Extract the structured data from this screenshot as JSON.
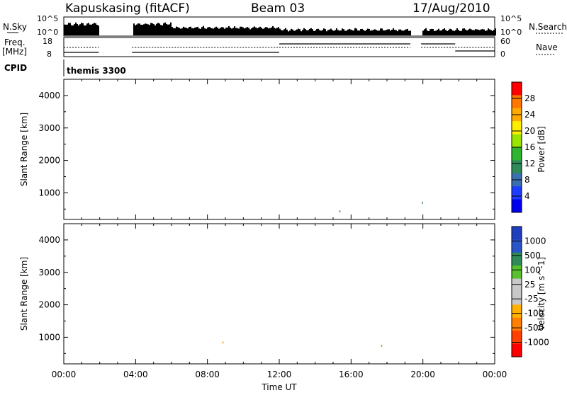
{
  "header": {
    "station": "Kapuskasing (fitACF)",
    "beam": "Beam 03",
    "date": "17/Aug/2010"
  },
  "top_panels": {
    "left_label_1": "N.Sky",
    "left_label_2a": "Freq.",
    "left_label_2b": "[MHz]",
    "left_label_3": "CPID",
    "right_label_1": "N.Search",
    "right_label_2": "Nave",
    "nsky_ticks": [
      "10^5",
      "10^0"
    ],
    "nsearch_ticks": [
      "10^5",
      "10^0"
    ],
    "freq_ticks": [
      "18",
      "8"
    ],
    "nave_ticks": [
      "60",
      "0"
    ],
    "cpid_text": "themis 3300"
  },
  "chart_data": [
    {
      "type": "heatmap",
      "title": "",
      "xlabel": "",
      "ylabel": "Slant Range [km]",
      "colorbar_label": "Power [dB]",
      "colorbar_ticks": [
        "28",
        "24",
        "20",
        "16",
        "12",
        "8",
        "4"
      ],
      "colorbar_colors": [
        "#ff0000",
        "#ff7700",
        "#ffaa00",
        "#ffee00",
        "#9be400",
        "#2fb52f",
        "#2e8b57",
        "#3a6fb0",
        "#1e3cff",
        "#0000ee"
      ],
      "xlim": [
        0,
        24
      ],
      "ylim": [
        180,
        4500
      ],
      "yticks": [
        1000,
        2000,
        3000,
        4000
      ],
      "xticks": [
        "00:00",
        "04:00",
        "08:00",
        "12:00",
        "16:00",
        "20:00",
        "00:00"
      ]
    },
    {
      "type": "heatmap",
      "title": "",
      "xlabel": "Time UT",
      "ylabel": "Slant Range [km]",
      "colorbar_label": "Velocity [m s^-1]",
      "colorbar_ticks": [
        "1000",
        "500",
        "100",
        "25",
        "-25",
        "-100",
        "-500",
        "-1000"
      ],
      "colorbar_colors": [
        "#1f3fbf",
        "#2a55c8",
        "#2e8b57",
        "#57c02a",
        "#c8c8c8",
        "#c8c8c8",
        "#ffb000",
        "#ff8000",
        "#ff4000",
        "#ff0000"
      ],
      "xlim": [
        0,
        24
      ],
      "ylim": [
        180,
        4500
      ],
      "yticks": [
        1000,
        2000,
        3000,
        4000
      ],
      "xticks": [
        "00:00",
        "04:00",
        "08:00",
        "12:00",
        "16:00",
        "20:00",
        "00:00"
      ]
    }
  ]
}
